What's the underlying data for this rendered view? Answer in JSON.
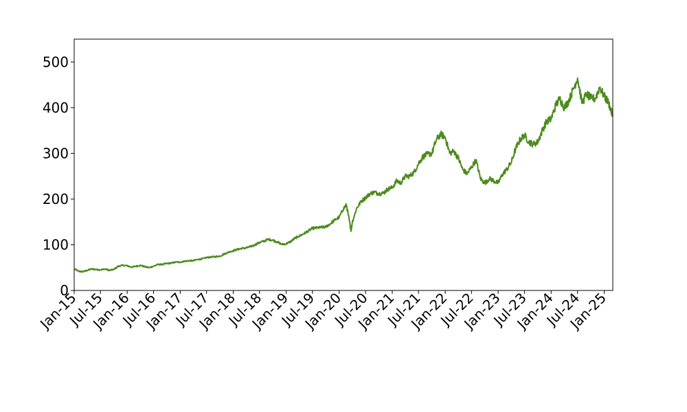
{
  "chart_data": {
    "type": "line",
    "title": "",
    "xlabel": "",
    "ylabel": "",
    "x_axis_type": "date",
    "xlim": [
      "2015-01-01",
      "2025-03-01"
    ],
    "ylim": [
      0,
      550
    ],
    "grid": false,
    "legend": "none",
    "y_ticks": [
      0,
      100,
      200,
      300,
      400,
      500
    ],
    "x_ticks": [
      {
        "date": "2015-01-01",
        "label": "Jan-15"
      },
      {
        "date": "2015-07-01",
        "label": "Jul-15"
      },
      {
        "date": "2016-01-01",
        "label": "Jan-16"
      },
      {
        "date": "2016-07-01",
        "label": "Jul-16"
      },
      {
        "date": "2017-01-01",
        "label": "Jan-17"
      },
      {
        "date": "2017-07-01",
        "label": "Jul-17"
      },
      {
        "date": "2018-01-01",
        "label": "Jan-18"
      },
      {
        "date": "2018-07-01",
        "label": "Jul-18"
      },
      {
        "date": "2019-01-01",
        "label": "Jan-19"
      },
      {
        "date": "2019-07-01",
        "label": "Jul-19"
      },
      {
        "date": "2020-01-01",
        "label": "Jan-20"
      },
      {
        "date": "2020-07-01",
        "label": "Jul-20"
      },
      {
        "date": "2021-01-01",
        "label": "Jan-21"
      },
      {
        "date": "2021-07-01",
        "label": "Jul-21"
      },
      {
        "date": "2022-01-01",
        "label": "Jan-22"
      },
      {
        "date": "2022-07-01",
        "label": "Jul-22"
      },
      {
        "date": "2023-01-01",
        "label": "Jan-23"
      },
      {
        "date": "2023-07-01",
        "label": "Jul-23"
      },
      {
        "date": "2024-01-01",
        "label": "Jan-24"
      },
      {
        "date": "2024-07-01",
        "label": "Jul-24"
      },
      {
        "date": "2025-01-01",
        "label": "Jan-25"
      }
    ],
    "series": [
      {
        "color": "#4d8a1d",
        "points": [
          [
            "2015-01-02",
            47
          ],
          [
            "2015-02-01",
            42
          ],
          [
            "2015-03-01",
            41
          ],
          [
            "2015-04-01",
            44
          ],
          [
            "2015-05-01",
            47
          ],
          [
            "2015-06-01",
            46
          ],
          [
            "2015-07-01",
            45
          ],
          [
            "2015-08-01",
            47
          ],
          [
            "2015-09-01",
            44
          ],
          [
            "2015-10-01",
            46
          ],
          [
            "2015-11-01",
            53
          ],
          [
            "2015-12-01",
            55
          ],
          [
            "2016-01-01",
            54
          ],
          [
            "2016-02-01",
            51
          ],
          [
            "2016-03-01",
            53
          ],
          [
            "2016-04-01",
            55
          ],
          [
            "2016-05-01",
            52
          ],
          [
            "2016-06-01",
            50
          ],
          [
            "2016-07-01",
            53
          ],
          [
            "2016-08-01",
            57
          ],
          [
            "2016-09-01",
            57
          ],
          [
            "2016-10-01",
            59
          ],
          [
            "2016-11-01",
            60
          ],
          [
            "2016-12-01",
            62
          ],
          [
            "2017-01-01",
            62
          ],
          [
            "2017-02-01",
            64
          ],
          [
            "2017-03-01",
            65
          ],
          [
            "2017-04-01",
            65
          ],
          [
            "2017-05-01",
            68
          ],
          [
            "2017-06-01",
            69
          ],
          [
            "2017-07-01",
            72
          ],
          [
            "2017-08-01",
            73
          ],
          [
            "2017-09-01",
            74
          ],
          [
            "2017-10-01",
            75
          ],
          [
            "2017-11-01",
            80
          ],
          [
            "2017-12-01",
            84
          ],
          [
            "2018-01-01",
            87
          ],
          [
            "2018-02-01",
            90
          ],
          [
            "2018-03-01",
            92
          ],
          [
            "2018-04-01",
            93
          ],
          [
            "2018-05-01",
            96
          ],
          [
            "2018-06-01",
            100
          ],
          [
            "2018-07-01",
            105
          ],
          [
            "2018-08-01",
            108
          ],
          [
            "2018-09-01",
            112
          ],
          [
            "2018-10-01",
            110
          ],
          [
            "2018-11-01",
            106
          ],
          [
            "2018-12-01",
            101
          ],
          [
            "2019-01-01",
            102
          ],
          [
            "2019-02-01",
            107
          ],
          [
            "2019-03-01",
            114
          ],
          [
            "2019-04-01",
            119
          ],
          [
            "2019-05-01",
            124
          ],
          [
            "2019-06-01",
            130
          ],
          [
            "2019-07-01",
            136
          ],
          [
            "2019-08-01",
            137
          ],
          [
            "2019-09-01",
            138
          ],
          [
            "2019-10-01",
            139
          ],
          [
            "2019-11-01",
            146
          ],
          [
            "2019-12-01",
            154
          ],
          [
            "2020-01-01",
            160
          ],
          [
            "2020-02-01",
            180
          ],
          [
            "2020-02-20",
            187
          ],
          [
            "2020-03-10",
            155
          ],
          [
            "2020-03-23",
            130
          ],
          [
            "2020-04-01",
            150
          ],
          [
            "2020-05-01",
            180
          ],
          [
            "2020-06-01",
            195
          ],
          [
            "2020-07-01",
            203
          ],
          [
            "2020-08-01",
            212
          ],
          [
            "2020-09-01",
            215
          ],
          [
            "2020-10-01",
            212
          ],
          [
            "2020-11-01",
            213
          ],
          [
            "2020-12-01",
            222
          ],
          [
            "2021-01-01",
            225
          ],
          [
            "2021-02-01",
            240
          ],
          [
            "2021-03-01",
            235
          ],
          [
            "2021-04-01",
            250
          ],
          [
            "2021-05-01",
            250
          ],
          [
            "2021-06-01",
            259
          ],
          [
            "2021-07-01",
            278
          ],
          [
            "2021-08-01",
            293
          ],
          [
            "2021-09-01",
            298
          ],
          [
            "2021-10-01",
            300
          ],
          [
            "2021-11-01",
            330
          ],
          [
            "2021-12-01",
            342
          ],
          [
            "2022-01-01",
            335
          ],
          [
            "2022-02-01",
            300
          ],
          [
            "2022-03-01",
            305
          ],
          [
            "2022-04-01",
            290
          ],
          [
            "2022-05-01",
            265
          ],
          [
            "2022-06-01",
            255
          ],
          [
            "2022-07-01",
            270
          ],
          [
            "2022-08-01",
            285
          ],
          [
            "2022-09-01",
            245
          ],
          [
            "2022-10-01",
            235
          ],
          [
            "2022-11-01",
            245
          ],
          [
            "2022-12-01",
            240
          ],
          [
            "2023-01-01",
            235
          ],
          [
            "2023-02-01",
            255
          ],
          [
            "2023-03-01",
            265
          ],
          [
            "2023-04-01",
            280
          ],
          [
            "2023-05-01",
            310
          ],
          [
            "2023-06-01",
            330
          ],
          [
            "2023-07-01",
            340
          ],
          [
            "2023-08-01",
            325
          ],
          [
            "2023-09-01",
            320
          ],
          [
            "2023-10-01",
            325
          ],
          [
            "2023-11-01",
            350
          ],
          [
            "2023-12-01",
            370
          ],
          [
            "2024-01-01",
            375
          ],
          [
            "2024-02-01",
            405
          ],
          [
            "2024-03-01",
            420
          ],
          [
            "2024-04-01",
            400
          ],
          [
            "2024-05-01",
            415
          ],
          [
            "2024-06-01",
            440
          ],
          [
            "2024-07-01",
            465
          ],
          [
            "2024-08-01",
            410
          ],
          [
            "2024-09-01",
            430
          ],
          [
            "2024-10-01",
            420
          ],
          [
            "2024-11-01",
            420
          ],
          [
            "2024-12-01",
            445
          ],
          [
            "2025-01-01",
            425
          ],
          [
            "2025-02-01",
            410
          ],
          [
            "2025-02-25",
            385
          ]
        ]
      }
    ]
  }
}
